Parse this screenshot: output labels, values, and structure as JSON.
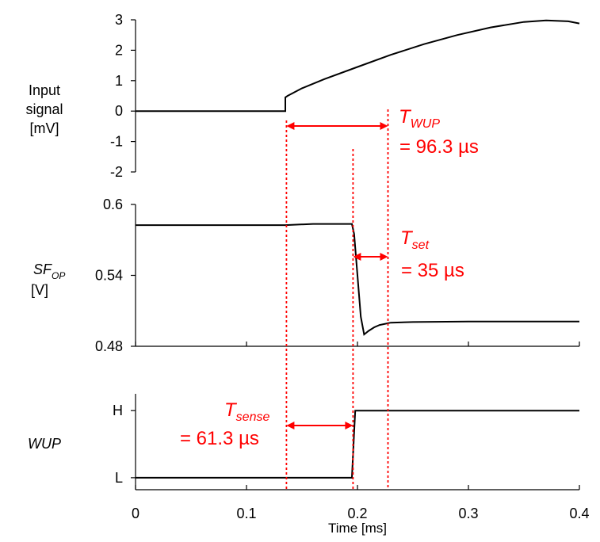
{
  "chart_data": [
    {
      "type": "line",
      "ylabel_lines": [
        "Input",
        "signal",
        "[mV]"
      ],
      "ylim": [
        -2.2,
        3.2
      ],
      "yticks": [
        -2,
        -1,
        0,
        1,
        2,
        3
      ],
      "ytick_labels": [
        "-2",
        "-1",
        "0",
        "1",
        "2",
        "3"
      ],
      "series": [
        {
          "x": [
            0,
            0.05,
            0.1,
            0.135,
            0.135,
            0.137,
            0.15,
            0.17,
            0.2,
            0.23,
            0.26,
            0.29,
            0.32,
            0.35,
            0.37,
            0.39,
            0.4
          ],
          "y": [
            0,
            0,
            0,
            0,
            0.45,
            0.5,
            0.75,
            1.05,
            1.45,
            1.85,
            2.2,
            2.5,
            2.75,
            2.93,
            2.98,
            2.95,
            2.88
          ]
        }
      ],
      "annotation": {
        "symbol": "T",
        "subscript": "WUP",
        "value_text": "= 96.3 µs"
      }
    },
    {
      "type": "line",
      "ylabel_main": "SF",
      "ylabel_sub": "OP",
      "ylabel_unit": "[V]",
      "ylim": [
        0.48,
        0.6
      ],
      "yticks": [
        0.48,
        0.54,
        0.6
      ],
      "ytick_labels": [
        "0.48",
        "0.54",
        "0.6"
      ],
      "series": [
        {
          "x": [
            0,
            0.1,
            0.135,
            0.16,
            0.195,
            0.197,
            0.2,
            0.203,
            0.206,
            0.21,
            0.215,
            0.22,
            0.23,
            0.25,
            0.3,
            0.35,
            0.4
          ],
          "y": [
            0.5825,
            0.5825,
            0.5825,
            0.5835,
            0.5835,
            0.575,
            0.54,
            0.505,
            0.49,
            0.493,
            0.496,
            0.498,
            0.5,
            0.5005,
            0.501,
            0.501,
            0.501
          ]
        }
      ],
      "annotation": {
        "symbol": "T",
        "subscript": "set",
        "value_text": "= 35 µs"
      }
    },
    {
      "type": "line",
      "ylabel": "WUP",
      "ylim": [
        0,
        1
      ],
      "yticks": [
        0.125,
        0.825
      ],
      "ytick_labels": [
        "L",
        "H"
      ],
      "xlabel": "Time [ms]",
      "xlim": [
        0,
        0.4
      ],
      "xticks": [
        0,
        0.1,
        0.2,
        0.3,
        0.4
      ],
      "xtick_labels": [
        "0",
        "0.1",
        "0.2",
        "0.3",
        "0.4"
      ],
      "series": [
        {
          "x": [
            0,
            0.195,
            0.197,
            0.198,
            0.4
          ],
          "y": [
            0.125,
            0.125,
            0.6,
            0.825,
            0.825
          ]
        }
      ],
      "annotation": {
        "symbol": "T",
        "subscript": "sense",
        "value_text": "= 61.3 µs"
      }
    }
  ],
  "markers_ms": [
    0.136,
    0.196,
    0.2275
  ],
  "colors": {
    "annotation": "#ff0000",
    "trace": "#000000",
    "axis": "#000000"
  }
}
